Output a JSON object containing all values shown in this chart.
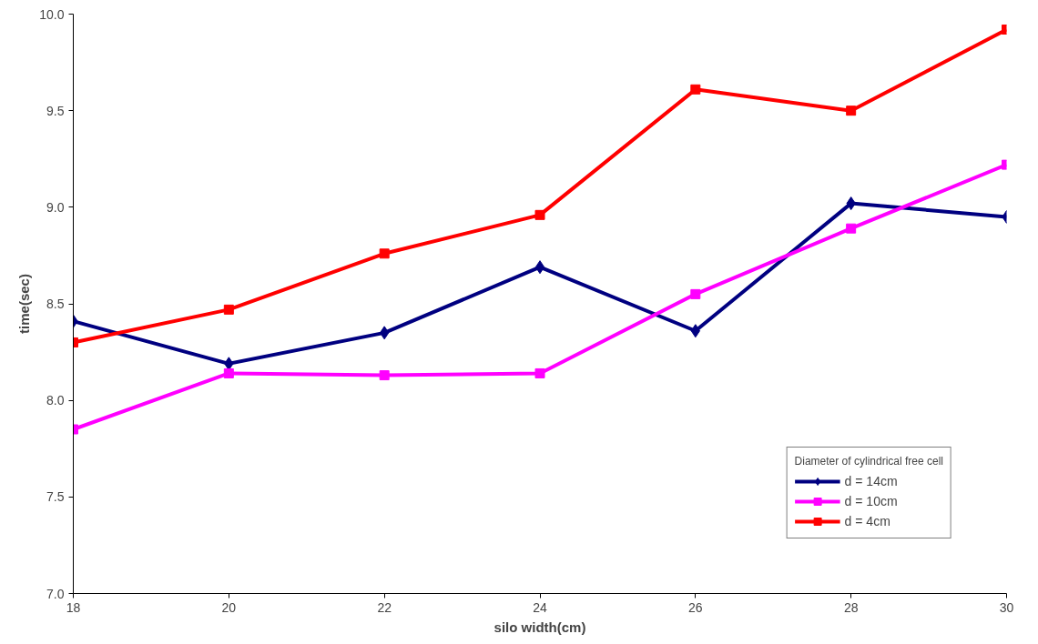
{
  "chart_data": {
    "type": "line",
    "xlabel": "silo width(cm)",
    "ylabel": "time(sec)",
    "legend_title": "Diameter of cylindrical free cell",
    "legend": "bottom right",
    "grid": false,
    "line_style": "solid",
    "x": [
      18,
      20,
      22,
      24,
      26,
      28,
      30
    ],
    "xlim": [
      18,
      30
    ],
    "xticks": [
      18,
      20,
      22,
      24,
      26,
      28,
      30
    ],
    "ylim": [
      7.0,
      10.0
    ],
    "yticks": [
      {
        "value": 7.0,
        "label": "7.0"
      },
      {
        "value": 7.5,
        "label": "7.5"
      },
      {
        "value": 8.0,
        "label": "8.0"
      },
      {
        "value": 8.5,
        "label": "8.5"
      },
      {
        "value": 9.0,
        "label": "9.0"
      },
      {
        "value": 9.5,
        "label": "9.5"
      },
      {
        "value": 10.0,
        "label": "10.0"
      }
    ],
    "series": [
      {
        "name": "d = 14cm",
        "color": "#000080",
        "marker": "diamond",
        "values": [
          8.41,
          8.19,
          8.35,
          8.69,
          8.36,
          9.02,
          8.95
        ]
      },
      {
        "name": "d = 10cm",
        "color": "#ff00ff",
        "marker": "square",
        "values": [
          7.85,
          8.14,
          8.13,
          8.14,
          8.55,
          8.89,
          9.22
        ]
      },
      {
        "name": "d = 4cm",
        "color": "#ff0000",
        "marker": "square",
        "values": [
          8.3,
          8.47,
          8.76,
          8.96,
          9.61,
          9.5,
          9.92
        ]
      }
    ]
  }
}
